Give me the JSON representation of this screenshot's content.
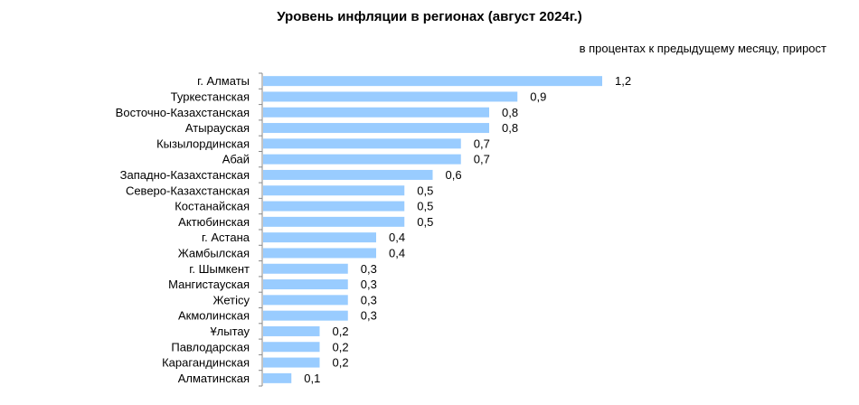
{
  "chart_data": {
    "type": "bar",
    "orientation": "horizontal",
    "title": "Уровень инфляции в регионах (август 2024г.)",
    "subtitle": "в процентах к предыдущему месяцу, прирост",
    "categories": [
      "г. Алматы",
      "Туркестанская",
      "Восточно-Казахстанская",
      "Атырауская",
      "Кызылординская",
      "Абай",
      "Западно-Казахстанская",
      "Северо-Казахстанская",
      "Костанайская",
      "Актюбинская",
      "г. Астана",
      "Жамбылская",
      "г. Шымкент",
      "Мангистауская",
      "Жетісу",
      "Акмолинская",
      "Ұлытау",
      "Павлодарская",
      "Карагандинская",
      "Алматинская"
    ],
    "values": [
      1.2,
      0.9,
      0.8,
      0.8,
      0.7,
      0.7,
      0.6,
      0.5,
      0.5,
      0.5,
      0.4,
      0.4,
      0.3,
      0.3,
      0.3,
      0.3,
      0.2,
      0.2,
      0.2,
      0.1
    ],
    "value_labels": [
      "1,2",
      "0,9",
      "0,8",
      "0,8",
      "0,7",
      "0,7",
      "0,6",
      "0,5",
      "0,5",
      "0,5",
      "0,4",
      "0,4",
      "0,3",
      "0,3",
      "0,3",
      "0,3",
      "0,2",
      "0,2",
      "0,2",
      "0,1"
    ],
    "xlim": [
      0,
      1.2
    ],
    "bar_color": "#99ccff",
    "axis_color": "#888888",
    "grid": false,
    "legend": "none"
  }
}
